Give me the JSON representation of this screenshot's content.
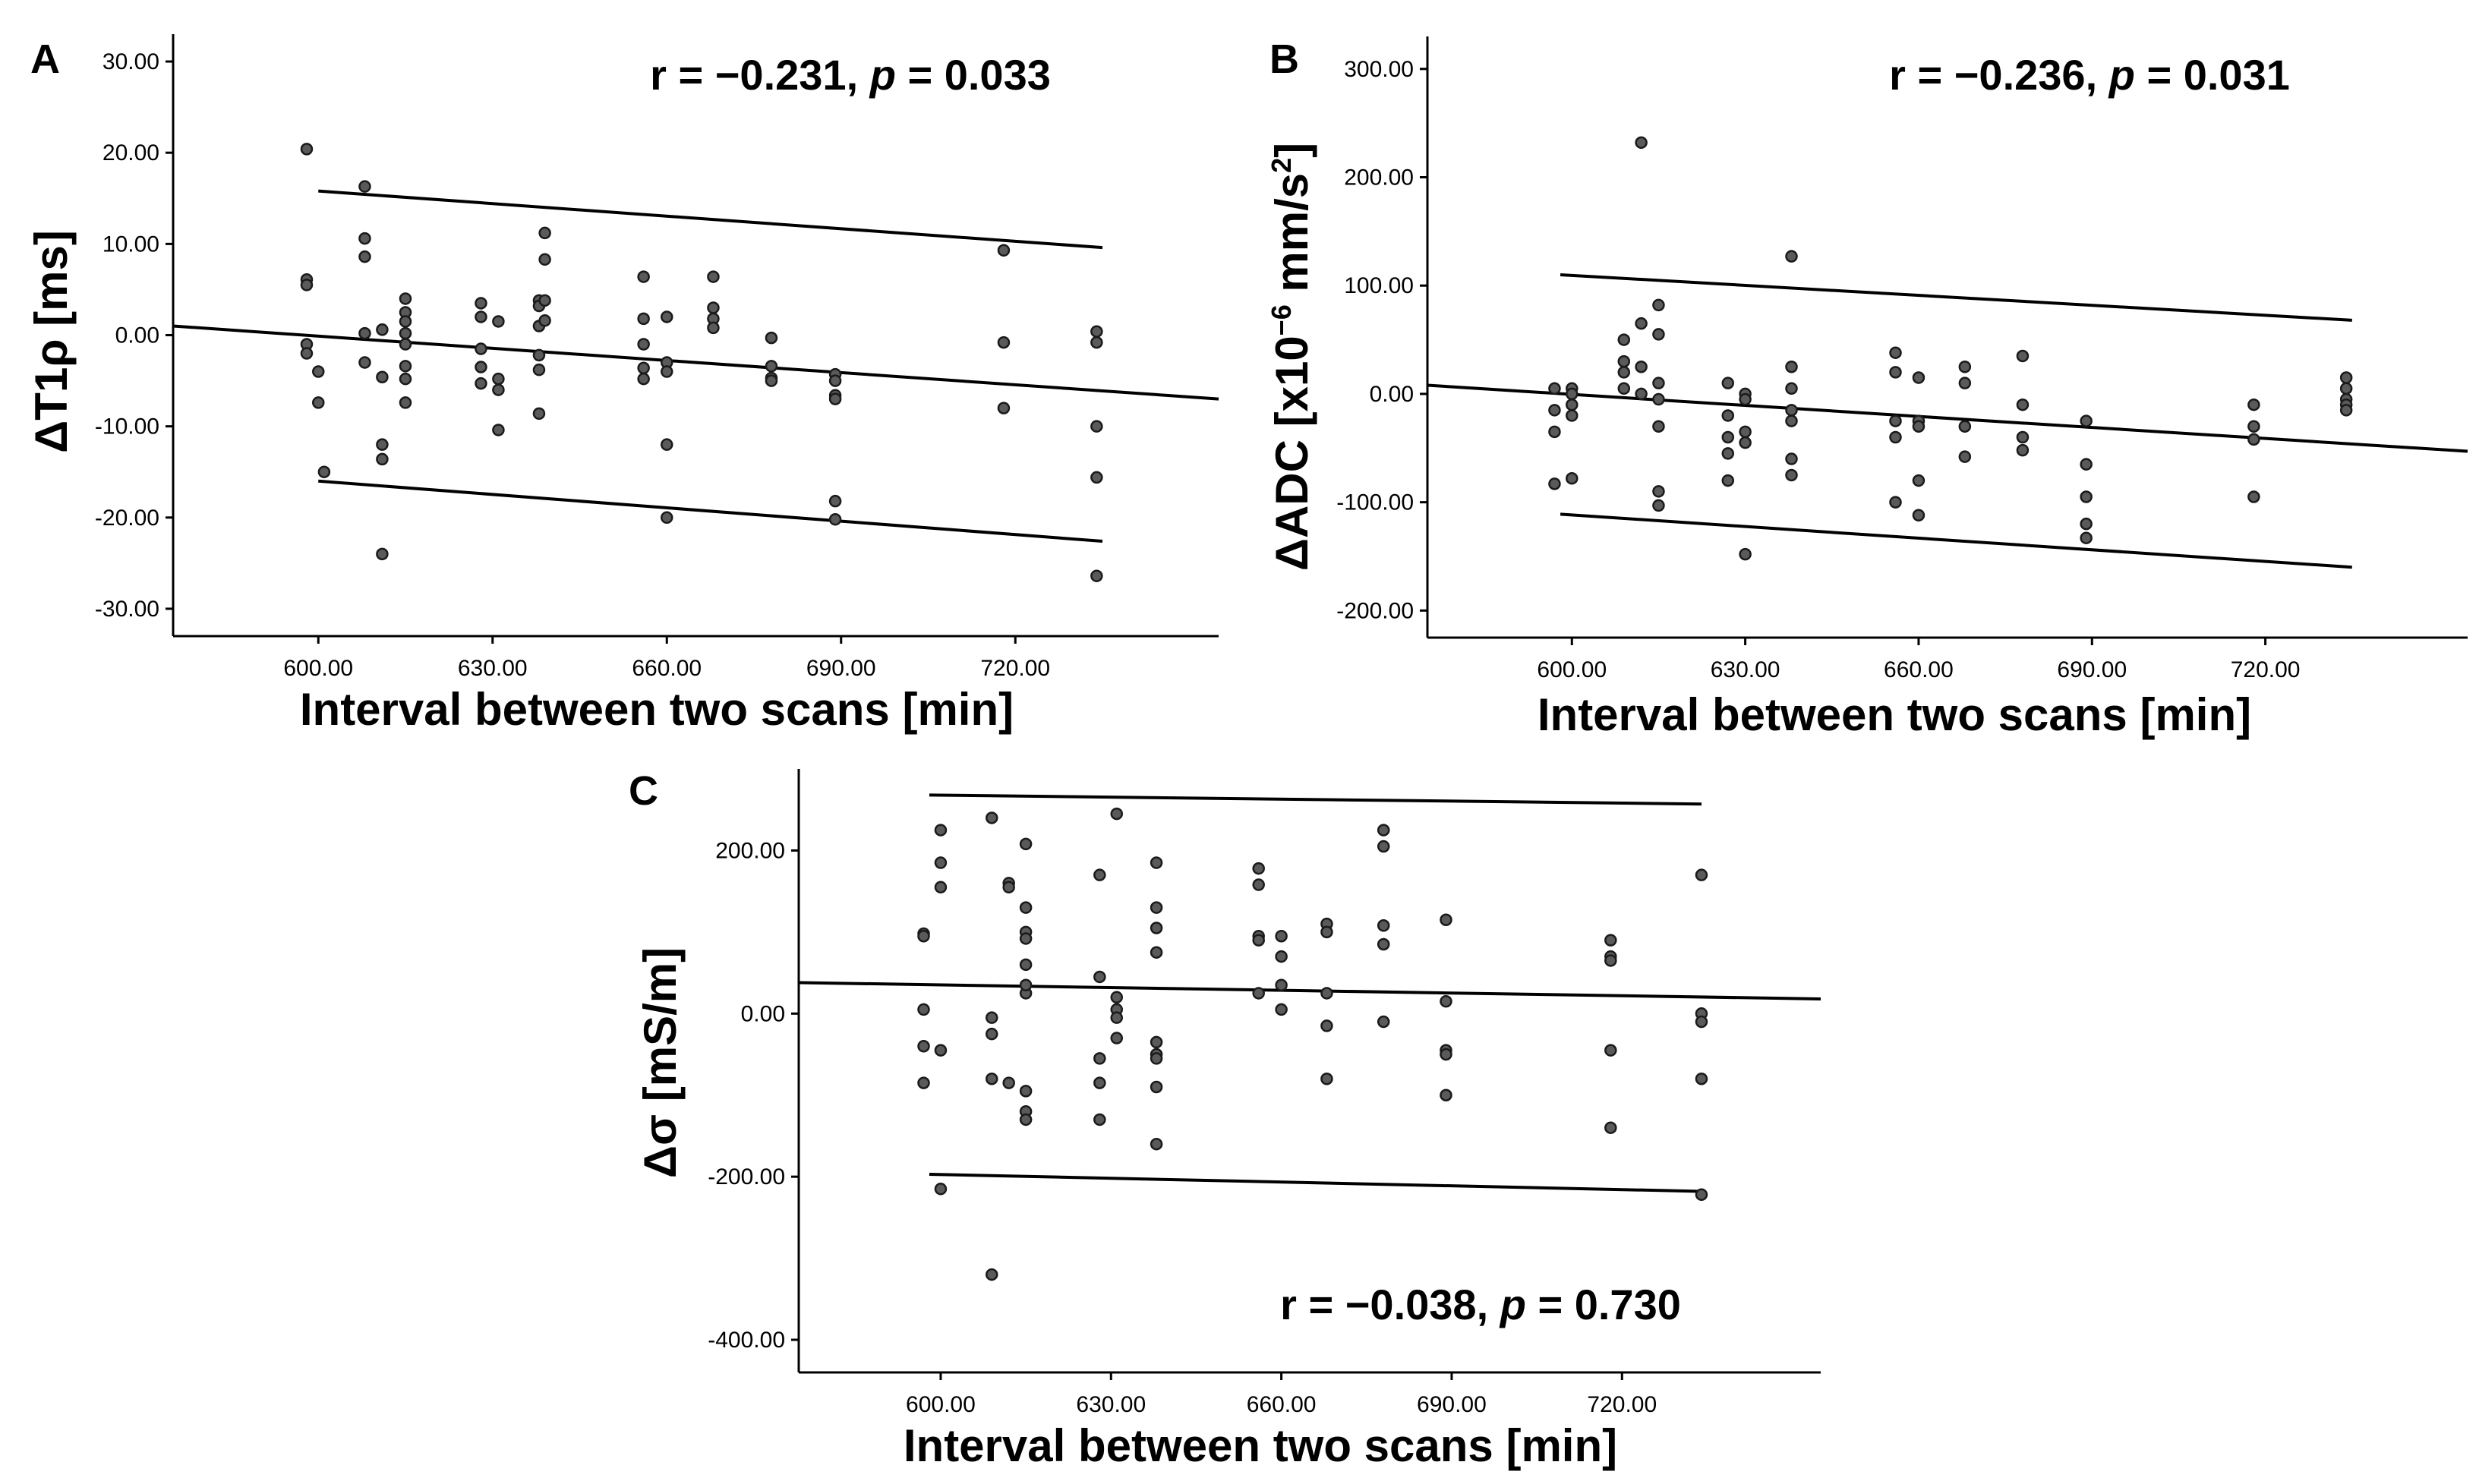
{
  "chart_data": [
    {
      "type": "scatter",
      "panel_label": "A",
      "title": "",
      "xlabel": "Interval between two scans [min]",
      "ylabel": "ΔT1ρ [ms]",
      "ylabel_main": "ΔT1ρ ",
      "ylabel_unit": "[ms]",
      "xlim": [
        575,
        755
      ],
      "ylim": [
        -33,
        33
      ],
      "xticks": [
        600,
        630,
        660,
        690,
        720
      ],
      "xtick_labels": [
        "600.00",
        "630.00",
        "660.00",
        "690.00",
        "720.00"
      ],
      "yticks": [
        30,
        20,
        10,
        0,
        -10,
        -20,
        -30
      ],
      "ytick_labels": [
        "30.00",
        "20.00",
        "10.00",
        "0.00",
        "-10.00",
        "-20.00",
        "-30.00"
      ],
      "annotation": {
        "r_text": "r = −0.231, ",
        "p_symbol": "p",
        "p_text": " = 0.033"
      },
      "fit": {
        "x": [
          575,
          755
        ],
        "y": [
          1.0,
          -7.0
        ]
      },
      "ci_upper": {
        "x": [
          600,
          735
        ],
        "y": [
          15.8,
          9.6
        ]
      },
      "ci_lower": {
        "x": [
          600,
          735
        ],
        "y": [
          -16.0,
          -22.6
        ]
      },
      "points": [
        [
          598,
          20.4
        ],
        [
          598,
          6.1
        ],
        [
          598,
          5.5
        ],
        [
          598,
          -1.0
        ],
        [
          598,
          -2.0
        ],
        [
          600,
          -4.0
        ],
        [
          600,
          -7.4
        ],
        [
          601,
          -15.0
        ],
        [
          608,
          16.3
        ],
        [
          608,
          10.6
        ],
        [
          608,
          8.6
        ],
        [
          608,
          0.2
        ],
        [
          608,
          -3.0
        ],
        [
          611,
          -12.0
        ],
        [
          611,
          -13.6
        ],
        [
          611,
          -24.0
        ],
        [
          611,
          -4.6
        ],
        [
          611,
          0.6
        ],
        [
          615,
          4.0
        ],
        [
          615,
          2.5
        ],
        [
          615,
          1.5
        ],
        [
          615,
          0.2
        ],
        [
          615,
          -1.0
        ],
        [
          615,
          -3.4
        ],
        [
          615,
          -4.8
        ],
        [
          615,
          -7.4
        ],
        [
          628,
          3.5
        ],
        [
          628,
          2.0
        ],
        [
          628,
          -1.5
        ],
        [
          628,
          -3.5
        ],
        [
          628,
          -5.3
        ],
        [
          631,
          1.5
        ],
        [
          631,
          -4.8
        ],
        [
          631,
          -6.0
        ],
        [
          631,
          -10.4
        ],
        [
          638,
          3.8
        ],
        [
          638,
          3.2
        ],
        [
          638,
          1.0
        ],
        [
          638,
          -2.2
        ],
        [
          638,
          -3.8
        ],
        [
          638,
          -8.6
        ],
        [
          639,
          11.2
        ],
        [
          639,
          8.3
        ],
        [
          639,
          3.8
        ],
        [
          639,
          1.6
        ],
        [
          656,
          6.4
        ],
        [
          656,
          1.8
        ],
        [
          656,
          -1.0
        ],
        [
          656,
          -3.6
        ],
        [
          656,
          -4.8
        ],
        [
          660,
          2.0
        ],
        [
          660,
          -3.0
        ],
        [
          660,
          -4.0
        ],
        [
          660,
          -12.0
        ],
        [
          660,
          -20.0
        ],
        [
          668,
          6.4
        ],
        [
          668,
          3.0
        ],
        [
          668,
          1.8
        ],
        [
          668,
          0.8
        ],
        [
          678,
          -0.3
        ],
        [
          678,
          -3.4
        ],
        [
          678,
          -4.7
        ],
        [
          678,
          -5.0
        ],
        [
          689,
          -4.3
        ],
        [
          689,
          -5.0
        ],
        [
          689,
          -6.6
        ],
        [
          689,
          -7.0
        ],
        [
          689,
          -18.2
        ],
        [
          689,
          -20.2
        ],
        [
          718,
          9.3
        ],
        [
          718,
          -0.8
        ],
        [
          718,
          -8.0
        ],
        [
          734,
          0.4
        ],
        [
          734,
          -0.8
        ],
        [
          734,
          -10.0
        ],
        [
          734,
          -15.6
        ],
        [
          734,
          -26.4
        ]
      ]
    },
    {
      "type": "scatter",
      "panel_label": "B",
      "title": "",
      "xlabel": "Interval between two scans [min]",
      "ylabel": "ΔADC [x10−6 mm/s2]",
      "ylabel_main": "ΔADC [x10",
      "ylabel_exp": "−6",
      "ylabel_mid": " mm/s",
      "ylabel_sup2": "2",
      "ylabel_end": "]",
      "xlim": [
        575,
        755
      ],
      "ylim": [
        -225,
        330
      ],
      "xticks": [
        600,
        630,
        660,
        690,
        720
      ],
      "xtick_labels": [
        "600.00",
        "630.00",
        "660.00",
        "690.00",
        "720.00"
      ],
      "yticks": [
        300,
        200,
        100,
        0,
        -100,
        -200
      ],
      "ytick_labels": [
        "300.00",
        "200.00",
        "100.00",
        "0.00",
        "-100.00",
        "-200.00"
      ],
      "annotation": {
        "r_text": "r = −0.236, ",
        "p_symbol": "p",
        "p_text": " = 0.031"
      },
      "fit": {
        "x": [
          575,
          755
        ],
        "y": [
          8,
          -53
        ]
      },
      "ci_upper": {
        "x": [
          598,
          735
        ],
        "y": [
          110,
          68
        ]
      },
      "ci_lower": {
        "x": [
          598,
          735
        ],
        "y": [
          -111,
          -160
        ]
      },
      "points": [
        [
          597,
          5
        ],
        [
          597,
          -15
        ],
        [
          597,
          -35
        ],
        [
          597,
          -83
        ],
        [
          600,
          5
        ],
        [
          600,
          0
        ],
        [
          600,
          -10
        ],
        [
          600,
          -20
        ],
        [
          600,
          -78
        ],
        [
          609,
          50
        ],
        [
          609,
          30
        ],
        [
          609,
          20
        ],
        [
          609,
          5
        ],
        [
          612,
          232
        ],
        [
          612,
          65
        ],
        [
          612,
          0
        ],
        [
          612,
          25
        ],
        [
          615,
          82
        ],
        [
          615,
          55
        ],
        [
          615,
          10
        ],
        [
          615,
          -30
        ],
        [
          615,
          -90
        ],
        [
          615,
          -103
        ],
        [
          615,
          -5
        ],
        [
          627,
          10
        ],
        [
          627,
          -20
        ],
        [
          627,
          -40
        ],
        [
          627,
          -55
        ],
        [
          627,
          -80
        ],
        [
          630,
          0
        ],
        [
          630,
          -5
        ],
        [
          630,
          -35
        ],
        [
          630,
          -45
        ],
        [
          630,
          -148
        ],
        [
          638,
          127
        ],
        [
          638,
          25
        ],
        [
          638,
          5
        ],
        [
          638,
          -15
        ],
        [
          638,
          -25
        ],
        [
          638,
          -60
        ],
        [
          638,
          -75
        ],
        [
          656,
          38
        ],
        [
          656,
          20
        ],
        [
          656,
          -25
        ],
        [
          656,
          -40
        ],
        [
          656,
          -100
        ],
        [
          660,
          15
        ],
        [
          660,
          -25
        ],
        [
          660,
          -30
        ],
        [
          660,
          -80
        ],
        [
          660,
          -112
        ],
        [
          668,
          25
        ],
        [
          668,
          10
        ],
        [
          668,
          -30
        ],
        [
          668,
          -58
        ],
        [
          678,
          35
        ],
        [
          678,
          -10
        ],
        [
          678,
          -40
        ],
        [
          678,
          -52
        ],
        [
          689,
          -25
        ],
        [
          689,
          -65
        ],
        [
          689,
          -95
        ],
        [
          689,
          -120
        ],
        [
          689,
          -133
        ],
        [
          718,
          -10
        ],
        [
          718,
          -30
        ],
        [
          718,
          -42
        ],
        [
          718,
          -95
        ],
        [
          734,
          15
        ],
        [
          734,
          5
        ],
        [
          734,
          -5
        ],
        [
          734,
          -10
        ],
        [
          734,
          -15
        ]
      ]
    },
    {
      "type": "scatter",
      "panel_label": "C",
      "title": "",
      "xlabel": "Interval between two scans [min]",
      "ylabel": "Δσ [mS/m]",
      "ylabel_main": "Δσ ",
      "ylabel_unit": "[mS/m]",
      "xlim": [
        575,
        755
      ],
      "ylim": [
        -440,
        300
      ],
      "xticks": [
        600,
        630,
        660,
        690,
        720
      ],
      "xtick_labels": [
        "600.00",
        "630.00",
        "660.00",
        "690.00",
        "720.00"
      ],
      "yticks": [
        200,
        0,
        -200,
        -400
      ],
      "ytick_labels": [
        "200.00",
        "0.00",
        "-200.00",
        "-400.00"
      ],
      "annotation": {
        "r_text": "r = −0.038, ",
        "p_symbol": "p",
        "p_text": " = 0.730"
      },
      "fit": {
        "x": [
          575,
          755
        ],
        "y": [
          38,
          18
        ]
      },
      "ci_upper": {
        "x": [
          598,
          734
        ],
        "y": [
          268,
          257
        ]
      },
      "ci_lower": {
        "x": [
          598,
          734
        ],
        "y": [
          -197,
          -218
        ]
      },
      "points": [
        [
          597,
          98
        ],
        [
          597,
          95
        ],
        [
          597,
          5
        ],
        [
          597,
          -40
        ],
        [
          597,
          -85
        ],
        [
          600,
          225
        ],
        [
          600,
          185
        ],
        [
          600,
          155
        ],
        [
          600,
          -45
        ],
        [
          600,
          -215
        ],
        [
          609,
          240
        ],
        [
          609,
          -5
        ],
        [
          609,
          -25
        ],
        [
          609,
          -80
        ],
        [
          609,
          -320
        ],
        [
          612,
          160
        ],
        [
          612,
          155
        ],
        [
          612,
          -85
        ],
        [
          615,
          208
        ],
        [
          615,
          130
        ],
        [
          615,
          100
        ],
        [
          615,
          92
        ],
        [
          615,
          60
        ],
        [
          615,
          25
        ],
        [
          615,
          35
        ],
        [
          615,
          -95
        ],
        [
          615,
          -120
        ],
        [
          615,
          -130
        ],
        [
          628,
          170
        ],
        [
          628,
          45
        ],
        [
          628,
          -55
        ],
        [
          628,
          -85
        ],
        [
          628,
          -130
        ],
        [
          631,
          245
        ],
        [
          631,
          20
        ],
        [
          631,
          5
        ],
        [
          631,
          -5
        ],
        [
          631,
          -30
        ],
        [
          638,
          185
        ],
        [
          638,
          130
        ],
        [
          638,
          105
        ],
        [
          638,
          75
        ],
        [
          638,
          -35
        ],
        [
          638,
          -50
        ],
        [
          638,
          -55
        ],
        [
          638,
          -90
        ],
        [
          638,
          -160
        ],
        [
          656,
          178
        ],
        [
          656,
          158
        ],
        [
          656,
          95
        ],
        [
          656,
          90
        ],
        [
          656,
          25
        ],
        [
          660,
          95
        ],
        [
          660,
          70
        ],
        [
          660,
          35
        ],
        [
          660,
          5
        ],
        [
          668,
          110
        ],
        [
          668,
          100
        ],
        [
          668,
          25
        ],
        [
          668,
          -15
        ],
        [
          668,
          -80
        ],
        [
          678,
          225
        ],
        [
          678,
          205
        ],
        [
          678,
          108
        ],
        [
          678,
          85
        ],
        [
          678,
          -10
        ],
        [
          689,
          115
        ],
        [
          689,
          15
        ],
        [
          689,
          -45
        ],
        [
          689,
          -50
        ],
        [
          689,
          -100
        ],
        [
          718,
          90
        ],
        [
          718,
          70
        ],
        [
          718,
          65
        ],
        [
          718,
          -45
        ],
        [
          718,
          -140
        ],
        [
          734,
          170
        ],
        [
          734,
          0
        ],
        [
          734,
          -10
        ],
        [
          734,
          -80
        ],
        [
          734,
          -222
        ]
      ]
    }
  ]
}
